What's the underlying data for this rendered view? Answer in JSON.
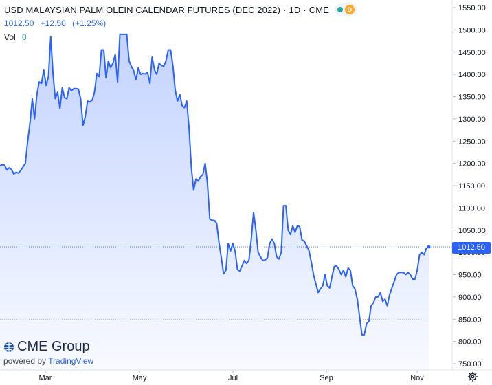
{
  "header": {
    "title": "USD MALAYSIAN PALM OLEIN CALENDAR FUTURES (DEC 2022)",
    "interval": "1D",
    "exchange": "CME",
    "market_status_icon": "green-dot-icon",
    "delayed_badge": "D",
    "last_price": "1012.50",
    "change": "+12.50",
    "change_pct": "(+1.25%)",
    "volume_label": "Vol",
    "volume_value": "0"
  },
  "branding": {
    "logo_text": "CME Group",
    "powered_by": "powered by",
    "tradingview": "TradingView"
  },
  "price_axis_label": "1012.50",
  "colors": {
    "line": "#2962ff",
    "accent": "#2962ff",
    "positive": "#26a69a",
    "delayed": "#ffa726"
  },
  "chart_data": {
    "type": "area",
    "title": "USD MALAYSIAN PALM OLEIN CALENDAR FUTURES (DEC 2022)",
    "xlabel": "",
    "ylabel": "",
    "x_ticks": [
      "Mar",
      "May",
      "Jul",
      "Sep",
      "Nov"
    ],
    "y_ticks": [
      1550,
      1500,
      1450,
      1400,
      1350,
      1300,
      1250,
      1200,
      1150,
      1100,
      1050,
      1000,
      950,
      900,
      850,
      800,
      750
    ],
    "ylim": [
      750,
      1550
    ],
    "grid": false,
    "last_value": 1012.5,
    "reference_lines": [
      1012.5,
      850
    ],
    "series": [
      {
        "values": [
          1195,
          1197,
          1196,
          1185,
          1190,
          1186,
          1176,
          1180,
          1178,
          1184,
          1192,
          1200,
          1250,
          1290,
          1345,
          1300,
          1355,
          1383,
          1380,
          1410,
          1375,
          1395,
          1485,
          1400,
          1345,
          1360,
          1323,
          1370,
          1348,
          1345,
          1370,
          1363,
          1368,
          1368,
          1367,
          1345,
          1285,
          1305,
          1340,
          1338,
          1342,
          1360,
          1402,
          1395,
          1455,
          1455,
          1392,
          1430,
          1415,
          1425,
          1445,
          1383,
          1490,
          1490,
          1490,
          1490,
          1430,
          1418,
          1408,
          1388,
          1415,
          1400,
          1402,
          1401,
          1405,
          1380,
          1439,
          1410,
          1400,
          1425,
          1420,
          1418,
          1430,
          1455,
          1455,
          1420,
          1365,
          1340,
          1355,
          1330,
          1325,
          1340,
          1280,
          1190,
          1140,
          1165,
          1160,
          1170,
          1175,
          1200,
          1155,
          1075,
          1072,
          1072,
          1065,
          1022,
          988,
          952,
          960,
          1020,
          1003,
          1020,
          1003,
          962,
          958,
          970,
          982,
          975,
          983,
          1030,
          1090,
          1050,
          1000,
          990,
          982,
          983,
          988,
          1020,
          1030,
          1020,
          990,
          985,
          1000,
          1105,
          1105,
          1050,
          1040,
          1060,
          1045,
          1060,
          1058,
          1028,
          1025,
          1015,
          1005,
          980,
          950,
          930,
          910,
          918,
          925,
          950,
          925,
          920,
          945,
          968,
          970,
          962,
          950,
          960,
          945,
          965,
          960,
          925,
          918,
          895,
          855,
          815,
          815,
          840,
          845,
          880,
          887,
          900,
          900,
          910,
          890,
          895,
          880,
          905,
          920,
          935,
          950,
          955,
          955,
          955,
          950,
          955,
          950,
          940,
          940,
          960,
          995,
          1000,
          995,
          1010,
          1012.5
        ]
      }
    ]
  }
}
